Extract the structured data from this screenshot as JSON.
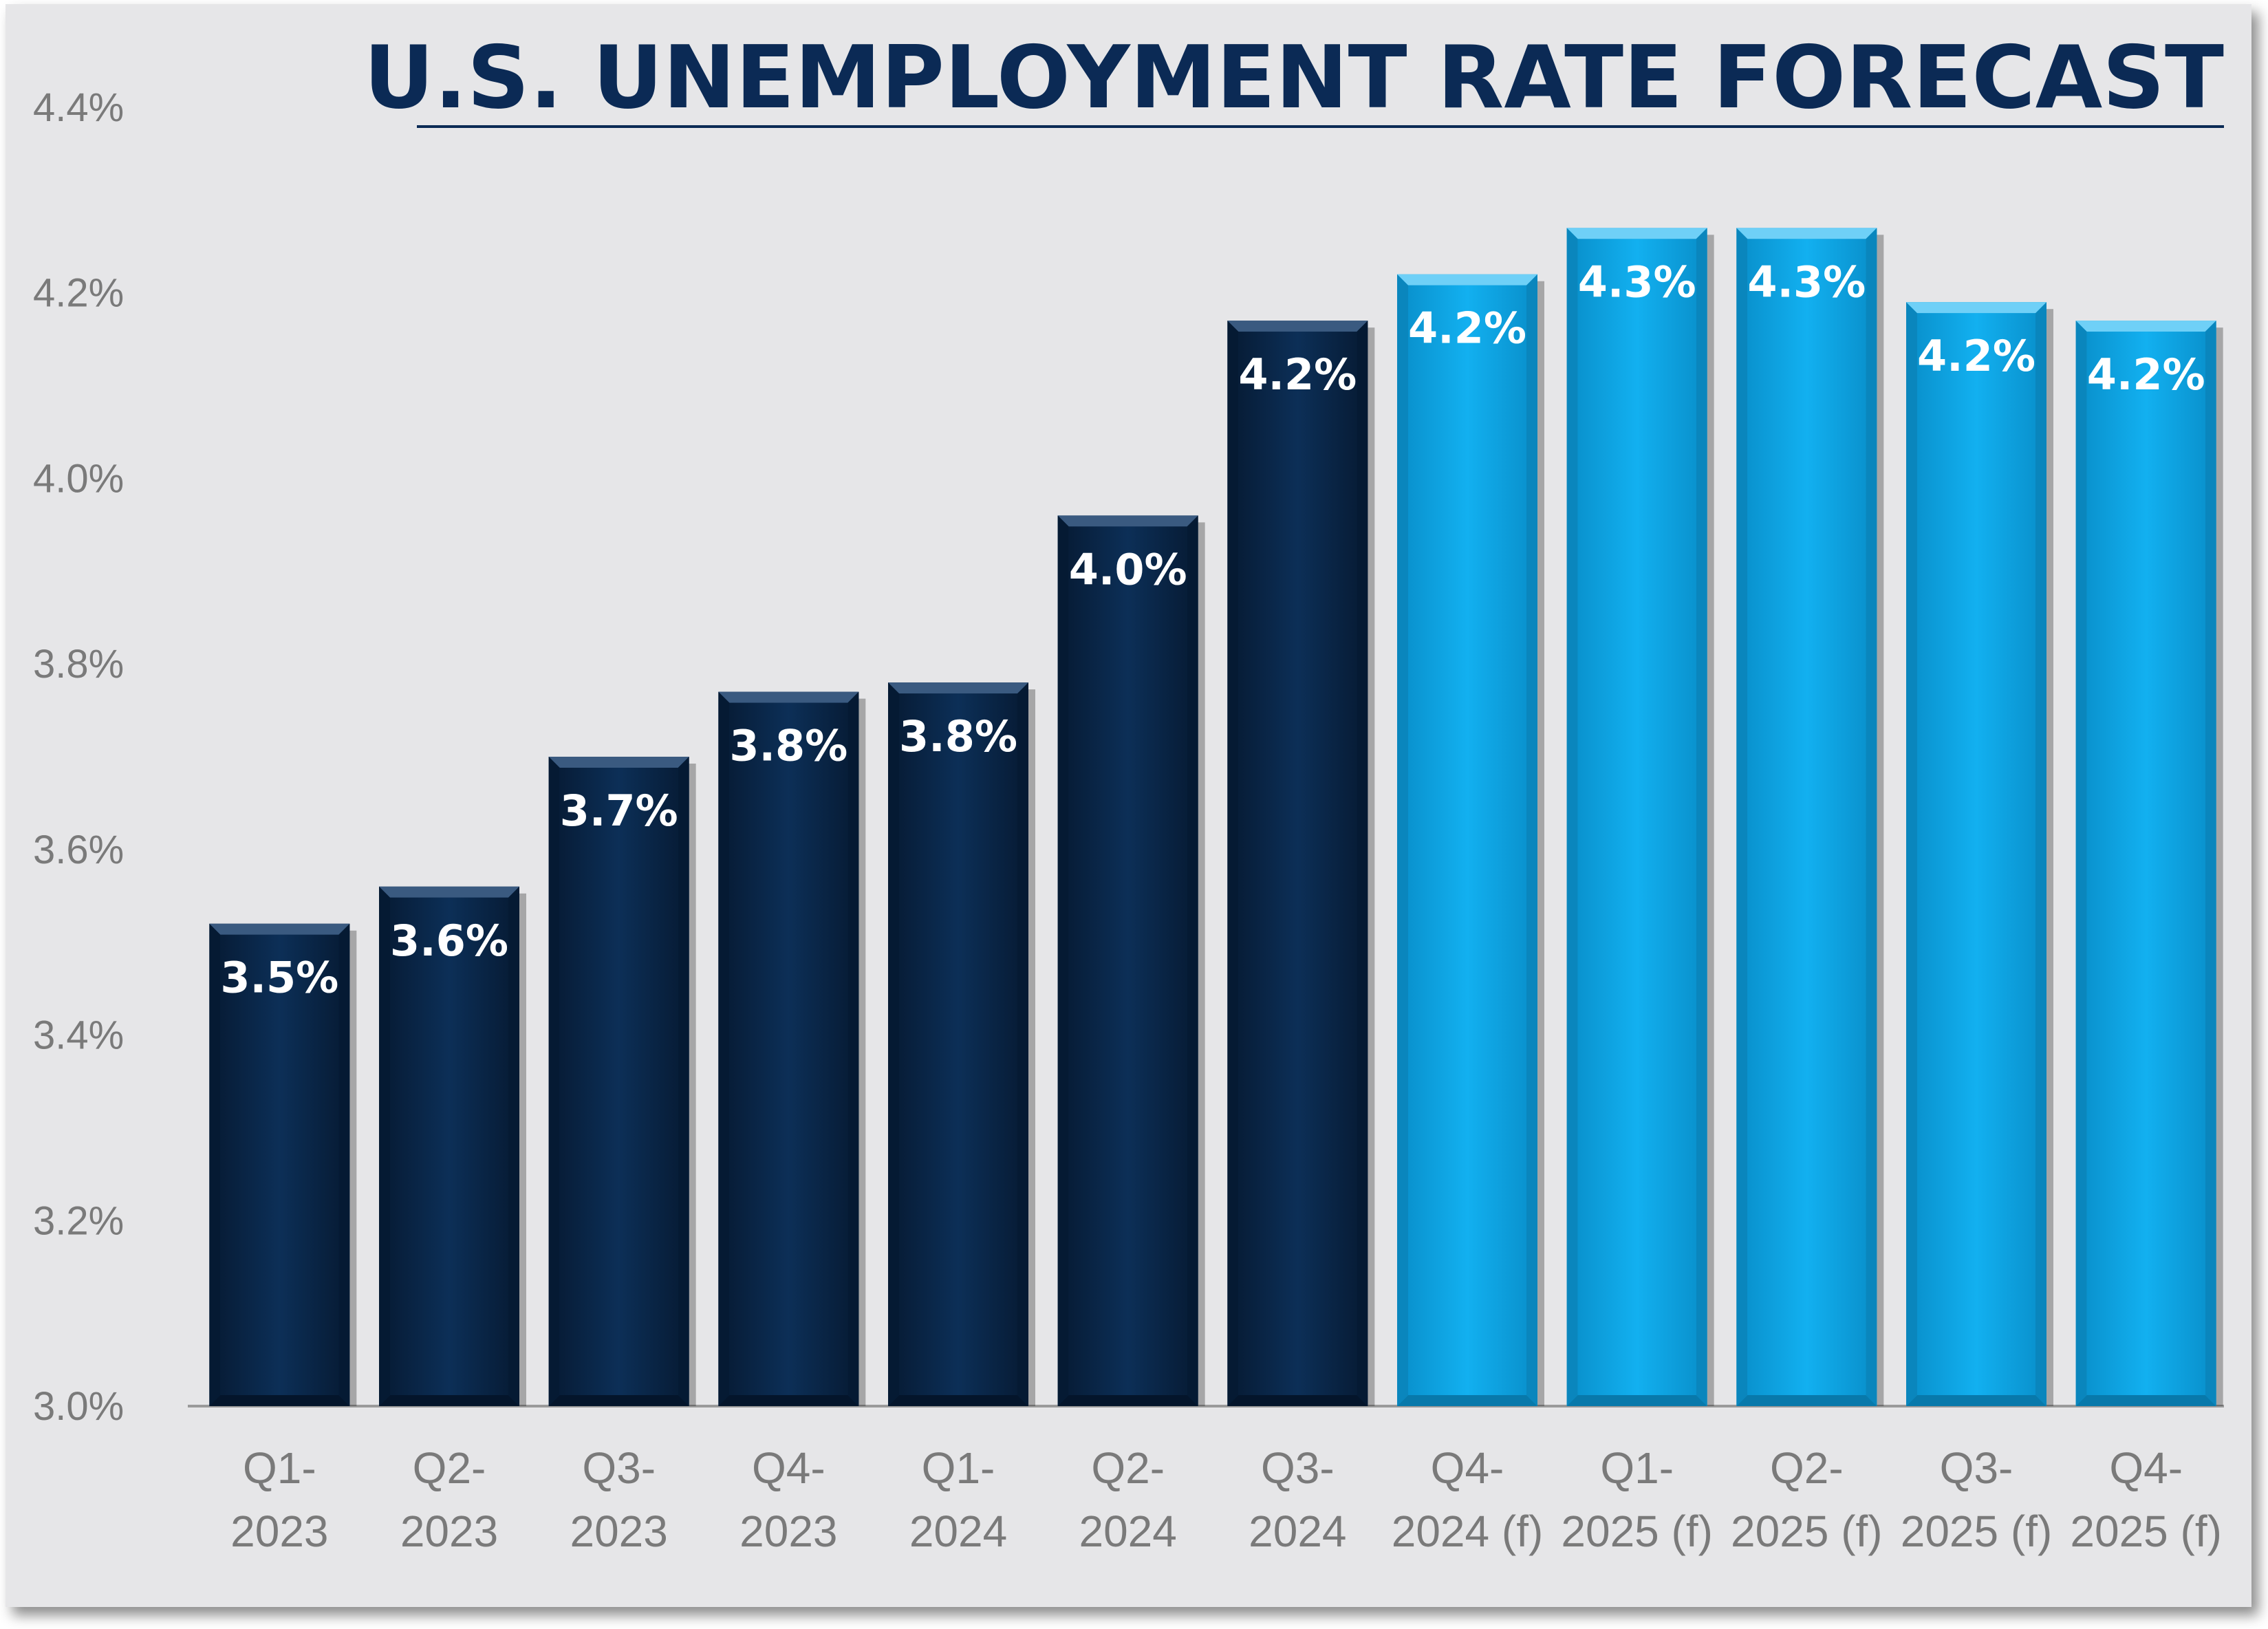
{
  "chart_data": {
    "type": "bar",
    "title": "U.S. UNEMPLOYMENT RATE FORECAST",
    "xlabel": "",
    "ylabel": "",
    "ylim": [
      3.0,
      4.4
    ],
    "yticks": [
      "3.0%",
      "3.2%",
      "3.4%",
      "3.6%",
      "3.8%",
      "4.0%",
      "4.2%",
      "4.4%"
    ],
    "ytick_values": [
      3.0,
      3.2,
      3.4,
      3.6,
      3.8,
      4.0,
      4.2,
      4.4
    ],
    "grid": false,
    "legend": "none",
    "categories": [
      [
        "Q1-",
        "2023"
      ],
      [
        "Q2-",
        "2023"
      ],
      [
        "Q3-",
        "2023"
      ],
      [
        "Q4-",
        "2023"
      ],
      [
        "Q1-",
        "2024"
      ],
      [
        "Q2-",
        "2024"
      ],
      [
        "Q3-",
        "2024"
      ],
      [
        "Q4-",
        "2024 (f)"
      ],
      [
        "Q1-",
        "2025 (f)"
      ],
      [
        "Q2-",
        "2025 (f)"
      ],
      [
        "Q3-",
        "2025 (f)"
      ],
      [
        "Q4-",
        "2025 (f)"
      ]
    ],
    "values": [
      3.52,
      3.56,
      3.7,
      3.77,
      3.78,
      3.96,
      4.17,
      4.22,
      4.27,
      4.27,
      4.19,
      4.17
    ],
    "data_labels": [
      "3.5%",
      "3.6%",
      "3.7%",
      "3.8%",
      "3.8%",
      "4.0%",
      "4.2%",
      "4.2%",
      "4.3%",
      "4.3%",
      "4.2%",
      "4.2%"
    ],
    "forecast": [
      false,
      false,
      false,
      false,
      false,
      false,
      false,
      true,
      true,
      true,
      true,
      true
    ],
    "colors": {
      "actual": "#0b2a4f",
      "forecast": "#0ba3e3",
      "title": "#0b2a55",
      "axis_text": "#7a7a7a",
      "background": "#e6e6e8"
    }
  }
}
